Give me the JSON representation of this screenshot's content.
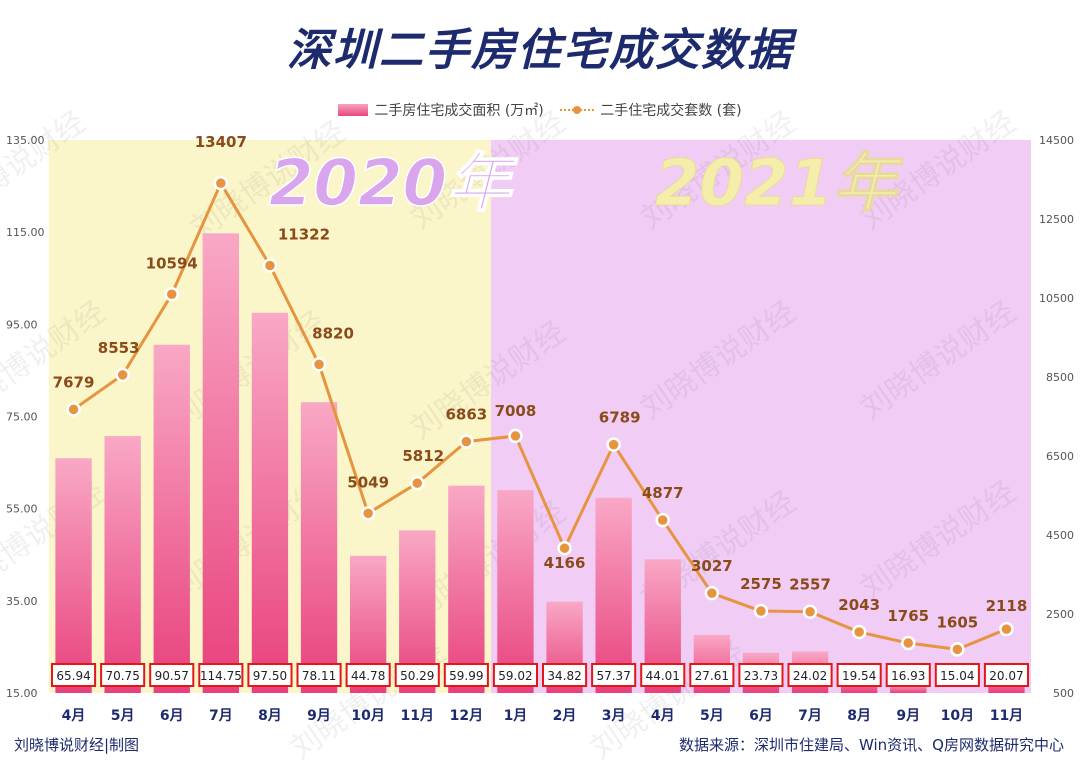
{
  "title": "深圳二手房住宅成交数据",
  "footer_left": "刘晓博说财经|制图",
  "footer_right": "数据来源：深圳市住建局、Win资讯、Q房网数据研究中心",
  "watermark_text": "刘晓博说财经",
  "colors": {
    "title": "#1d2b6e",
    "bar_top": "#f9a8c6",
    "bar_bottom": "#e8407c",
    "line": "#e69440",
    "line_label": "#8a4a1a",
    "bg_2020": "#fbf6c9",
    "bg_2021": "#f1cdf6",
    "value_box_border": "#e01818",
    "year_2020": "#d9a6ee",
    "year_2021": "#f4eeaa"
  },
  "chart_data": {
    "type": "bar",
    "categories": [
      "4月",
      "5月",
      "6月",
      "7月",
      "8月",
      "9月",
      "10月",
      "11月",
      "12月",
      "1月",
      "2月",
      "3月",
      "4月",
      "5月",
      "6月",
      "7月",
      "8月",
      "9月",
      "10月",
      "11月"
    ],
    "year_labels": [
      "2020年",
      "2021年"
    ],
    "series": [
      {
        "name": "二手房住宅成交面积 (万㎡)",
        "type": "bar",
        "axis": "left",
        "values": [
          65.94,
          70.75,
          90.57,
          114.75,
          97.5,
          78.11,
          44.78,
          50.29,
          59.99,
          59.02,
          34.82,
          57.37,
          44.01,
          27.61,
          23.73,
          24.02,
          19.54,
          16.93,
          15.04,
          20.07
        ],
        "value_labels": [
          "65.94",
          "70.75",
          "90.57",
          "114.75",
          "97.50",
          "78.11",
          "44.78",
          "50.29",
          "59.99",
          "59.02",
          "34.82",
          "57.37",
          "44.01",
          "27.61",
          "23.73",
          "24.02",
          "19.54",
          "16.93",
          "15.04",
          "20.07"
        ]
      },
      {
        "name": "二手住宅成交套数 (套)",
        "type": "line",
        "axis": "right",
        "values": [
          7679,
          8553,
          10594,
          13407,
          11322,
          8820,
          5049,
          5812,
          6863,
          7008,
          4166,
          6789,
          4877,
          3027,
          2575,
          2557,
          2043,
          1765,
          1605,
          2118
        ]
      }
    ],
    "y_left": {
      "min": 15,
      "max": 135,
      "ticks": [
        "15.00",
        "35.00",
        "55.00",
        "75.00",
        "95.00",
        "115.00",
        "135.00"
      ]
    },
    "y_right": {
      "min": 500,
      "max": 14500,
      "ticks": [
        "500",
        "2500",
        "4500",
        "6500",
        "8500",
        "10500",
        "12500",
        "14500"
      ]
    },
    "legend_position": "top",
    "grid": false
  }
}
